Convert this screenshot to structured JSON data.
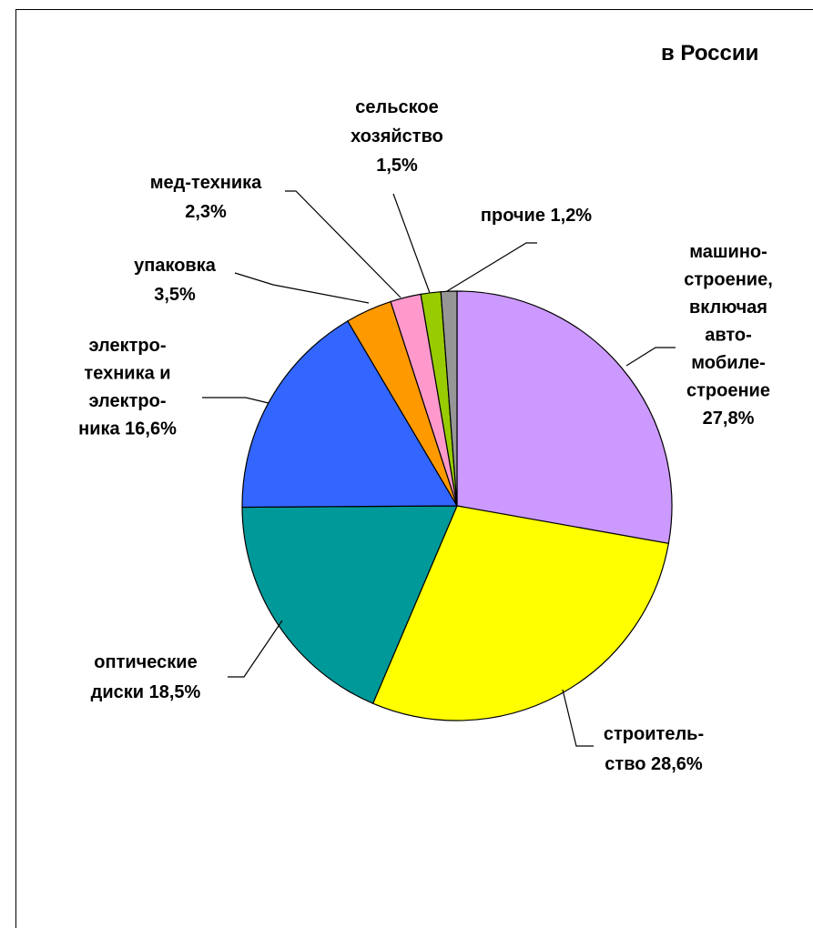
{
  "chart_data": {
    "type": "pie",
    "title": "в России",
    "start_angle_deg": 0,
    "direction": "clockwise",
    "slices": [
      {
        "label_lines": [
          "машино-",
          "строение,",
          "включая",
          "авто-",
          "мобиле-",
          "строение",
          "27,8%"
        ],
        "value": 27.8,
        "color": "#CC99FF"
      },
      {
        "label_lines": [
          "строитель-",
          "ство 28,6%"
        ],
        "value": 28.6,
        "color": "#FFFF00"
      },
      {
        "label_lines": [
          "оптические",
          "диски 18,5%"
        ],
        "value": 18.5,
        "color": "#009999"
      },
      {
        "label_lines": [
          "электро-",
          "техника и",
          "электро-",
          "ника 16,6%"
        ],
        "value": 16.6,
        "color": "#3366FF"
      },
      {
        "label_lines": [
          "упаковка",
          "3,5%"
        ],
        "value": 3.5,
        "color": "#FF9900"
      },
      {
        "label_lines": [
          "мед-техника",
          "2,3%"
        ],
        "value": 2.3,
        "color": "#FF99CC"
      },
      {
        "label_lines": [
          "сельское",
          "хозяйство",
          "1,5%"
        ],
        "value": 1.5,
        "color": "#99CC00"
      },
      {
        "label_lines": [
          "прочие 1,2%"
        ],
        "value": 1.2,
        "color": "#969696"
      }
    ],
    "legend": "none",
    "data_labels": "outside with leader lines"
  }
}
